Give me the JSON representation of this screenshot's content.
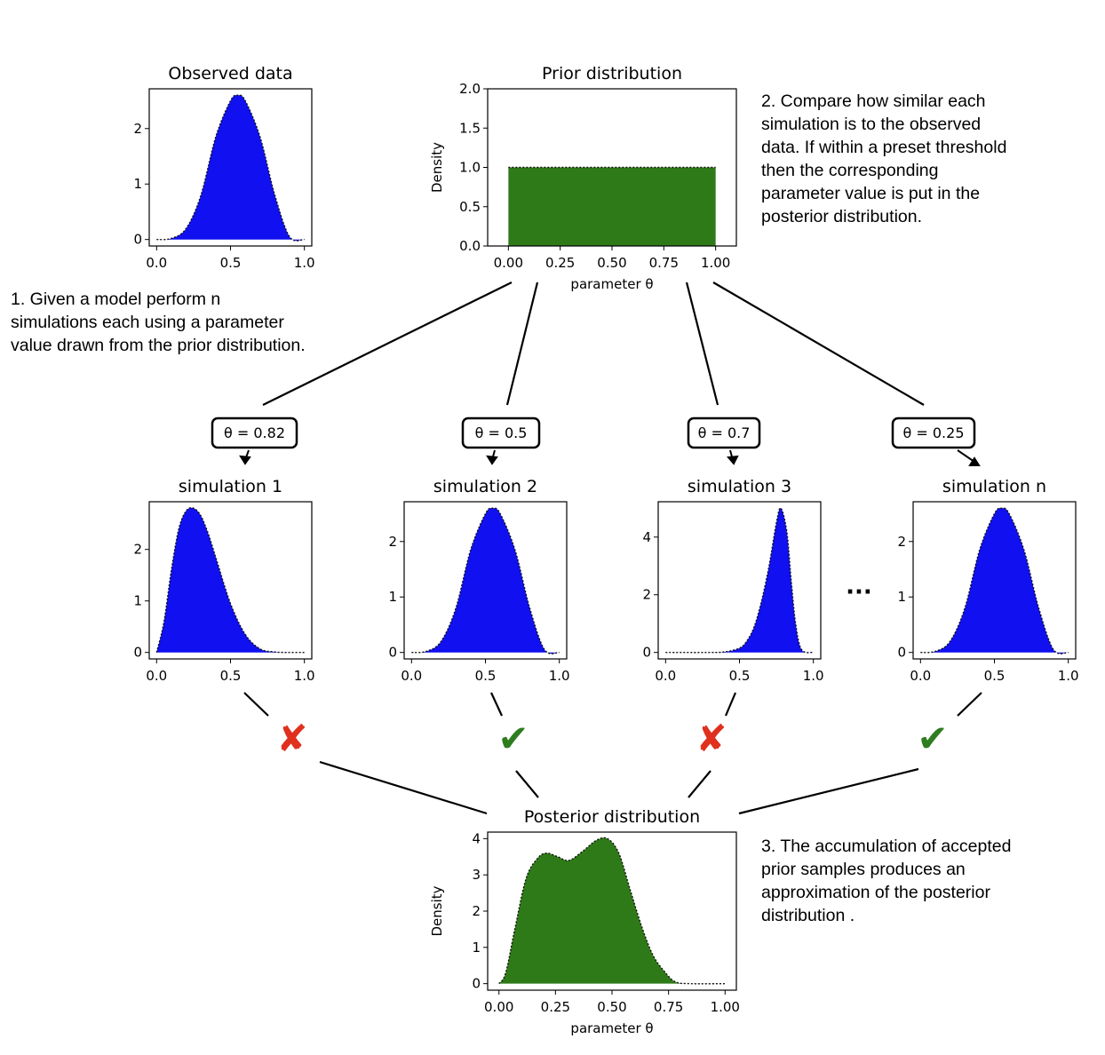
{
  "annotations": {
    "step1": [
      "1. Given a model perform n",
      "simulations each using a parameter",
      "value drawn from the prior distribution."
    ],
    "step2": [
      "2. Compare how similar each",
      "simulation is to the observed",
      "data. If within a preset threshold",
      "then the corresponding",
      "parameter value is put in the",
      "posterior distribution."
    ],
    "step3": [
      "3. The accumulation of accepted",
      "prior samples produces an",
      "approximation of the posterior",
      "distribution ."
    ]
  },
  "theta_boxes": [
    "θ = 0.82",
    "θ = 0.5",
    "θ = 0.7",
    "θ = 0.25"
  ],
  "ellipsis": "···",
  "verdicts": [
    {
      "symbol": "✘",
      "accepted": false,
      "color": "#e0301e"
    },
    {
      "symbol": "✔",
      "accepted": true,
      "color": "#2e7d1f"
    },
    {
      "symbol": "✘",
      "accepted": false,
      "color": "#e0301e"
    },
    {
      "symbol": "✔",
      "accepted": true,
      "color": "#2e7d1f"
    }
  ],
  "colors": {
    "simulation_fill": "#1010f0",
    "prior_fill": "#2f7a18",
    "posterior_fill": "#2f7a18"
  },
  "chart_data": [
    {
      "id": "observed",
      "type": "area",
      "title": "Observed data",
      "xlabel": "",
      "ylabel": "",
      "xlim": [
        0,
        1
      ],
      "ylim": [
        0,
        2.6
      ],
      "xticks": [
        0,
        0.5,
        1
      ],
      "xtick_labels": [
        "0.0",
        "0.5",
        "1.0"
      ],
      "yticks": [
        0,
        1,
        2
      ],
      "ytick_labels": [
        "0",
        "1",
        "2"
      ],
      "x": [
        0,
        0.1,
        0.2,
        0.3,
        0.4,
        0.5,
        0.55,
        0.6,
        0.7,
        0.8,
        0.9,
        1.0
      ],
      "y": [
        0,
        0.02,
        0.2,
        0.8,
        1.85,
        2.5,
        2.6,
        2.5,
        1.85,
        0.8,
        0.05,
        0
      ]
    },
    {
      "id": "prior",
      "type": "area",
      "title": "Prior distribution",
      "xlabel": "parameter θ",
      "ylabel": "Density",
      "xlim": [
        -0.1,
        1.1
      ],
      "ylim": [
        0,
        2.0
      ],
      "xticks": [
        0,
        0.25,
        0.5,
        0.75,
        1.0
      ],
      "xtick_labels": [
        "0.00",
        "0.25",
        "0.50",
        "0.75",
        "1.00"
      ],
      "yticks": [
        0,
        0.5,
        1.0,
        1.5,
        2.0
      ],
      "ytick_labels": [
        "0.0",
        "0.5",
        "1.0",
        "1.5",
        "2.0"
      ],
      "x": [
        0,
        0,
        1,
        1
      ],
      "y": [
        0,
        1,
        1,
        0
      ]
    },
    {
      "id": "sim1",
      "type": "area",
      "title": "simulation 1",
      "xlabel": "",
      "ylabel": "",
      "xlim": [
        0,
        1
      ],
      "ylim": [
        0,
        2.8
      ],
      "xticks": [
        0,
        0.5,
        1
      ],
      "xtick_labels": [
        "0.0",
        "0.5",
        "1.0"
      ],
      "yticks": [
        0,
        1,
        2
      ],
      "ytick_labels": [
        "0",
        "1",
        "2"
      ],
      "x": [
        0,
        0.05,
        0.1,
        0.15,
        0.2,
        0.25,
        0.3,
        0.35,
        0.4,
        0.5,
        0.6,
        0.7,
        0.8,
        0.9,
        1.0
      ],
      "y": [
        0,
        0.6,
        1.6,
        2.4,
        2.75,
        2.8,
        2.65,
        2.3,
        1.85,
        0.95,
        0.35,
        0.07,
        0.01,
        0,
        0
      ]
    },
    {
      "id": "sim2",
      "type": "area",
      "title": "simulation 2",
      "xlabel": "",
      "ylabel": "",
      "xlim": [
        0,
        1
      ],
      "ylim": [
        0,
        2.6
      ],
      "xticks": [
        0,
        0.5,
        1
      ],
      "xtick_labels": [
        "0.0",
        "0.5",
        "1.0"
      ],
      "yticks": [
        0,
        1,
        2
      ],
      "ytick_labels": [
        "0",
        "1",
        "2"
      ],
      "x": [
        0,
        0.1,
        0.2,
        0.3,
        0.4,
        0.5,
        0.55,
        0.6,
        0.7,
        0.8,
        0.9,
        1.0
      ],
      "y": [
        0,
        0.02,
        0.2,
        0.8,
        1.85,
        2.5,
        2.6,
        2.5,
        1.85,
        0.8,
        0.05,
        0
      ]
    },
    {
      "id": "sim3",
      "type": "area",
      "title": "simulation 3",
      "xlabel": "",
      "ylabel": "",
      "xlim": [
        0,
        1
      ],
      "ylim": [
        0,
        5.0
      ],
      "xticks": [
        0,
        0.5,
        1
      ],
      "xtick_labels": [
        "0.0",
        "0.5",
        "1.0"
      ],
      "yticks": [
        0,
        2,
        4
      ],
      "ytick_labels": [
        "0",
        "2",
        "4"
      ],
      "x": [
        0,
        0.3,
        0.4,
        0.5,
        0.55,
        0.6,
        0.65,
        0.7,
        0.75,
        0.78,
        0.82,
        0.85,
        0.88,
        0.92,
        1.0
      ],
      "y": [
        0,
        0,
        0.02,
        0.15,
        0.4,
        0.9,
        1.8,
        3.0,
        4.5,
        5.0,
        4.2,
        2.5,
        1.0,
        0.1,
        0
      ]
    },
    {
      "id": "simn",
      "type": "area",
      "title": "simulation n",
      "xlabel": "",
      "ylabel": "",
      "xlim": [
        0,
        1
      ],
      "ylim": [
        0,
        2.6
      ],
      "xticks": [
        0,
        0.5,
        1
      ],
      "xtick_labels": [
        "0.0",
        "0.5",
        "1.0"
      ],
      "yticks": [
        0,
        1,
        2
      ],
      "ytick_labels": [
        "0",
        "1",
        "2"
      ],
      "x": [
        0,
        0.1,
        0.2,
        0.3,
        0.4,
        0.5,
        0.55,
        0.6,
        0.7,
        0.8,
        0.9,
        1.0
      ],
      "y": [
        0,
        0.02,
        0.2,
        0.8,
        1.85,
        2.5,
        2.6,
        2.5,
        1.85,
        0.8,
        0.05,
        0
      ]
    },
    {
      "id": "posterior",
      "type": "area",
      "title": "Posterior distribution",
      "xlabel": "parameter θ",
      "ylabel": "Density",
      "xlim": [
        -0.05,
        1.05
      ],
      "ylim": [
        0,
        4.0
      ],
      "xticks": [
        0,
        0.25,
        0.5,
        0.75,
        1.0
      ],
      "xtick_labels": [
        "0.00",
        "0.25",
        "0.50",
        "0.75",
        "1.00"
      ],
      "yticks": [
        0,
        1,
        2,
        3,
        4
      ],
      "ytick_labels": [
        "0",
        "1",
        "2",
        "3",
        "4"
      ],
      "x": [
        0,
        0.03,
        0.07,
        0.12,
        0.17,
        0.21,
        0.26,
        0.31,
        0.37,
        0.43,
        0.48,
        0.53,
        0.58,
        0.63,
        0.68,
        0.73,
        0.78,
        0.85,
        1.0
      ],
      "y": [
        0,
        0.3,
        1.5,
        2.9,
        3.45,
        3.6,
        3.5,
        3.4,
        3.65,
        3.95,
        4.0,
        3.6,
        2.6,
        1.6,
        0.8,
        0.35,
        0.05,
        0,
        0
      ]
    }
  ]
}
